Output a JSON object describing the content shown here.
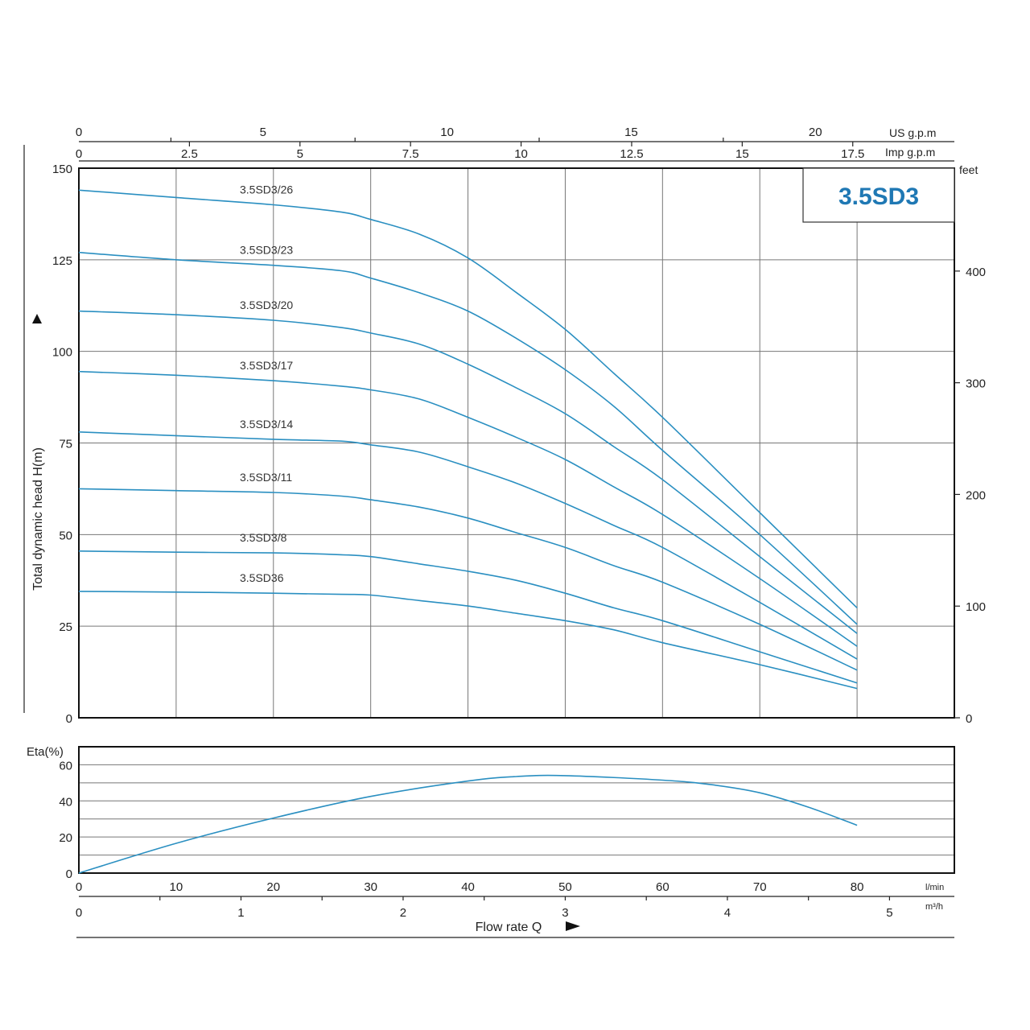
{
  "chart_data": [
    {
      "type": "line",
      "title": "3.5SD3",
      "ylabel": "Total dynamic head H(m)",
      "ylabel_right": "feet",
      "xlabel": "Flow rate Q",
      "x_unit": "l/min",
      "xlim": [
        0,
        90
      ],
      "ylim": [
        0,
        150
      ],
      "y_ticks": [
        0,
        25,
        50,
        75,
        100,
        125,
        150
      ],
      "y_right_ticks": [
        0,
        100,
        200,
        300,
        400
      ],
      "x_ticks": [
        0,
        10,
        20,
        30,
        40,
        50,
        60,
        70,
        80
      ],
      "secondary_x_axes": [
        {
          "unit": "US g.p.m",
          "ticks": [
            0,
            5,
            10,
            15,
            20
          ]
        },
        {
          "unit": "Imp g.p.m",
          "ticks": [
            0,
            2.5,
            5,
            7.5,
            10,
            12.5,
            15,
            17.5
          ]
        },
        {
          "unit": "m³/h",
          "ticks": [
            0,
            1,
            2,
            3,
            4,
            5
          ]
        }
      ],
      "grid": true,
      "series": [
        {
          "name": "3.5SD3/26",
          "x": [
            0,
            10,
            20,
            27,
            30,
            35,
            40,
            45,
            50,
            55,
            60,
            70,
            80
          ],
          "y": [
            144,
            142,
            140,
            138,
            136,
            132,
            125.5,
            116,
            106,
            94,
            82,
            56,
            30
          ]
        },
        {
          "name": "3.5SD3/23",
          "x": [
            0,
            10,
            20,
            27,
            30,
            35,
            40,
            45,
            50,
            55,
            60,
            70,
            80
          ],
          "y": [
            127,
            125,
            123.5,
            122,
            120,
            116,
            111,
            103.5,
            95,
            85,
            73,
            50,
            25.5
          ]
        },
        {
          "name": "3.5SD3/20",
          "x": [
            0,
            10,
            20,
            27,
            30,
            35,
            40,
            45,
            50,
            55,
            60,
            70,
            80
          ],
          "y": [
            111,
            110,
            108.5,
            106.5,
            105,
            102,
            96.5,
            90,
            83,
            74,
            65,
            44,
            23
          ]
        },
        {
          "name": "3.5SD3/17",
          "x": [
            0,
            10,
            20,
            27,
            30,
            35,
            40,
            45,
            50,
            55,
            60,
            70,
            80
          ],
          "y": [
            94.5,
            93.5,
            92,
            90.5,
            89.5,
            87,
            82,
            76.5,
            70.5,
            63,
            55.5,
            38,
            19.5
          ]
        },
        {
          "name": "3.5SD3/14",
          "x": [
            0,
            10,
            20,
            27,
            30,
            35,
            40,
            45,
            50,
            55,
            60,
            70,
            80
          ],
          "y": [
            78,
            77,
            76,
            75.5,
            74.5,
            72.5,
            68.5,
            64,
            58.5,
            52.5,
            46.5,
            31.5,
            16
          ]
        },
        {
          "name": "3.5SD3/11",
          "x": [
            0,
            10,
            20,
            27,
            30,
            35,
            40,
            45,
            50,
            55,
            60,
            70,
            80
          ],
          "y": [
            62.5,
            62,
            61.5,
            60.5,
            59.5,
            57.5,
            54.5,
            50.5,
            46.5,
            41.5,
            37,
            25.5,
            13
          ]
        },
        {
          "name": "3.5SD3/8",
          "x": [
            0,
            10,
            20,
            27,
            30,
            35,
            40,
            45,
            50,
            55,
            60,
            70,
            80
          ],
          "y": [
            45.5,
            45.2,
            45,
            44.5,
            44,
            42,
            40,
            37.5,
            34,
            30,
            26.5,
            18,
            9.5
          ]
        },
        {
          "name": "3.5SD36",
          "x": [
            0,
            10,
            20,
            27,
            30,
            35,
            40,
            45,
            50,
            55,
            60,
            70,
            80
          ],
          "y": [
            34.5,
            34.3,
            34,
            33.7,
            33.5,
            32,
            30.5,
            28.5,
            26.5,
            24,
            20.5,
            14.5,
            8
          ]
        }
      ]
    },
    {
      "type": "line",
      "ylabel": "Eta(%)",
      "xlim": [
        0,
        90
      ],
      "ylim": [
        0,
        70
      ],
      "y_ticks": [
        0,
        20,
        40,
        60
      ],
      "x_ticks": [
        0,
        10,
        20,
        30,
        40,
        50,
        60,
        70,
        80
      ],
      "x_unit": "l/min",
      "grid": true,
      "series": [
        {
          "x": [
            0,
            10,
            20,
            30,
            40,
            45,
            50,
            60,
            65,
            70,
            75,
            80
          ],
          "y": [
            0,
            16.5,
            30.5,
            42.5,
            51,
            53.5,
            54,
            51.5,
            49,
            44.5,
            36.5,
            26.5
          ]
        }
      ]
    }
  ]
}
